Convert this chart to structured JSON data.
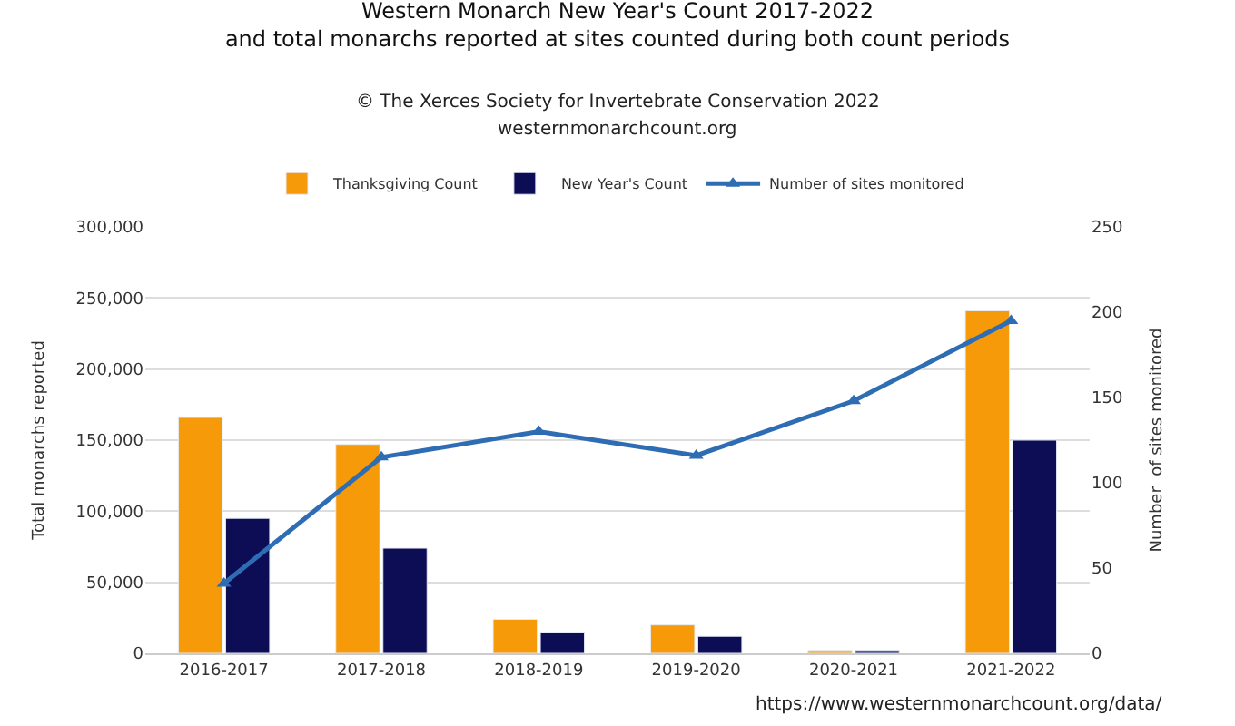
{
  "chart_data": {
    "type": "bar",
    "title": "Western Monarch New Year's Count 2017-2022",
    "subtitle": "and total monarchs reported at sites counted during both count periods",
    "annotations": [
      "© The Xerces Society for Invertebrate Conservation 2022",
      "westernmonarchcount.org",
      "https://www.westernmonarchcount.org/data/"
    ],
    "ylabel": "Total monarchs reported",
    "y2label": "Number  of sites monitored",
    "categories": [
      "2016-2017",
      "2017-2018",
      "2018-2019",
      "2019-2020",
      "2020-2021",
      "2021-2022"
    ],
    "series": [
      {
        "name": "Thanksgiving Count",
        "color": "#f79a0a",
        "values": [
          166000,
          147000,
          24000,
          20000,
          2000,
          241000
        ]
      },
      {
        "name": "New Year's Count",
        "color": "#0d0d55",
        "values": [
          95000,
          74000,
          15000,
          12000,
          2000,
          150000
        ]
      },
      {
        "name": "Number of sites monitored",
        "type": "line",
        "axis": "y2",
        "color": "#2e6db4",
        "marker": "triangle",
        "values": [
          41,
          115,
          130,
          116,
          148,
          195
        ]
      }
    ],
    "ylim": [
      0,
      300000
    ],
    "yticks": [
      {
        "value": 0,
        "label": "0"
      },
      {
        "value": 50000,
        "label": "50,000"
      },
      {
        "value": 100000,
        "label": "100,000"
      },
      {
        "value": 150000,
        "label": "150,000"
      },
      {
        "value": 200000,
        "label": "200,000"
      },
      {
        "value": 250000,
        "label": "250,000"
      },
      {
        "value": 300000,
        "label": "300,000"
      }
    ],
    "y2lim": [
      0,
      250
    ],
    "y2ticks": [
      0,
      50,
      100,
      150,
      200,
      250
    ],
    "grid": "y",
    "legend": "top"
  }
}
